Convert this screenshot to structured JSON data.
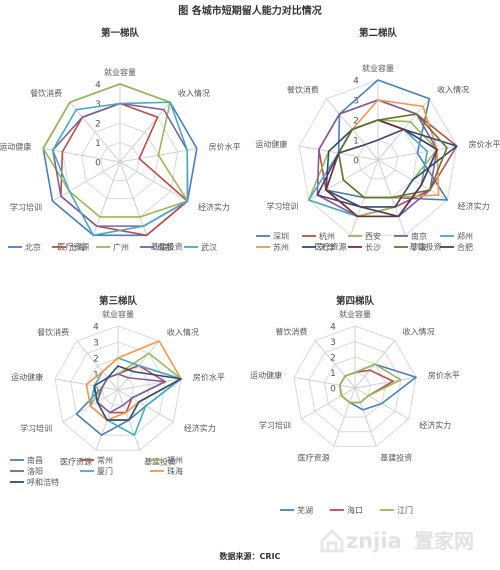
{
  "title": "图  各城市短期留人能力对比情况",
  "source": "数据来源：CRIC",
  "watermark": {
    "brand_latin": "znjia",
    "brand_cn": "置家网"
  },
  "colors": {
    "grid": "#d9d9d9",
    "axis_line": "#d0d0d0",
    "watermark": "#e0e0e0"
  },
  "chart_data": [
    {
      "type": "radar",
      "title": "第一梯队",
      "axes": [
        "就业容量",
        "收入情况",
        "房价水平",
        "经济实力",
        "基建投资",
        "医疗资源",
        "学习培训",
        "运动健康",
        "餐饮消费"
      ],
      "rlim": [
        0,
        4
      ],
      "ticks": [
        0,
        1,
        2,
        3,
        4
      ],
      "legend": "bottom",
      "series": [
        {
          "name": "北京",
          "color": "#4a7ebb",
          "values": [
            4,
            4,
            4,
            4,
            4,
            4,
            4,
            4,
            4
          ]
        },
        {
          "name": "上海",
          "color": "#be4b48",
          "values": [
            3,
            3,
            1,
            4,
            4,
            3.5,
            3.5,
            3,
            3
          ]
        },
        {
          "name": "广州",
          "color": "#98b954",
          "values": [
            4,
            4,
            2,
            4,
            3,
            3,
            3,
            4,
            4
          ]
        },
        {
          "name": "成都",
          "color": "#7d60a0",
          "values": [
            3,
            3.5,
            3.5,
            4,
            3.5,
            3.5,
            3.5,
            3.5,
            3
          ]
        },
        {
          "name": "武汉",
          "color": "#46aac5",
          "values": [
            3,
            4,
            3.5,
            4,
            3.5,
            4,
            3,
            3.5,
            3.5
          ]
        }
      ]
    },
    {
      "type": "radar",
      "title": "第二梯队",
      "axes": [
        "就业容量",
        "收入情况",
        "房价水平",
        "经济实力",
        "基建投资",
        "医疗资源",
        "学习培训",
        "运动健康",
        "餐饮消费"
      ],
      "rlim": [
        0,
        4
      ],
      "ticks": [
        0,
        1,
        2,
        3,
        4
      ],
      "legend": "bottom",
      "series": [
        {
          "name": "深圳",
          "color": "#4a7ebb",
          "values": [
            4,
            4,
            2,
            4,
            2,
            2,
            3,
            2,
            3
          ]
        },
        {
          "name": "杭州",
          "color": "#be4b48",
          "values": [
            3,
            3,
            4,
            3,
            2.5,
            3,
            3,
            3,
            3
          ]
        },
        {
          "name": "西安",
          "color": "#98b954",
          "values": [
            2,
            2.5,
            3,
            2,
            2.5,
            3,
            4,
            2.5,
            2
          ]
        },
        {
          "name": "南京",
          "color": "#7d60a0",
          "values": [
            3,
            3,
            3,
            3,
            3,
            3,
            3.5,
            3,
            3
          ]
        },
        {
          "name": "郑州",
          "color": "#46aac5",
          "values": [
            2,
            2,
            2.5,
            2.5,
            3,
            3,
            4,
            2,
            2
          ]
        },
        {
          "name": "苏州",
          "color": "#f79646",
          "values": [
            3,
            3.5,
            3,
            3.5,
            2,
            2,
            2,
            2,
            2
          ]
        },
        {
          "name": "天津",
          "color": "#2c4d75",
          "values": [
            2,
            2,
            4,
            2,
            2.5,
            2.5,
            3,
            2.5,
            2
          ]
        },
        {
          "name": "长沙",
          "color": "#772c2a",
          "values": [
            2,
            2,
            3,
            2.5,
            3,
            3,
            3,
            2,
            2
          ]
        },
        {
          "name": "宁波",
          "color": "#5f7530",
          "values": [
            2,
            3,
            3.5,
            3,
            2,
            2,
            2,
            2,
            2
          ]
        },
        {
          "name": "合肥",
          "color": "#4d3b62",
          "values": [
            1,
            2,
            3,
            2.5,
            3,
            2.5,
            3.5,
            2,
            1
          ]
        }
      ]
    },
    {
      "type": "radar",
      "title": "第三梯队",
      "axes": [
        "就业容量",
        "收入情况",
        "房价水平",
        "经济实力",
        "基建投资",
        "医疗资源",
        "学习培训",
        "运动健康",
        "餐饮消费"
      ],
      "rlim": [
        0,
        4
      ],
      "ticks": [
        0,
        1,
        2,
        3,
        4
      ],
      "legend": "bottom",
      "series": [
        {
          "name": "南昌",
          "color": "#4a7ebb",
          "values": [
            1,
            2,
            4,
            2,
            2,
            3,
            3,
            1,
            1
          ]
        },
        {
          "name": "常州",
          "color": "#be4b48",
          "values": [
            1,
            2,
            3,
            1,
            1.5,
            1.5,
            1.5,
            1,
            1
          ]
        },
        {
          "name": "福州",
          "color": "#98b954",
          "values": [
            1,
            3,
            4,
            1.5,
            2,
            2,
            2,
            1,
            1
          ]
        },
        {
          "name": "洛阳",
          "color": "#7d60a0",
          "values": [
            1,
            1,
            3,
            1,
            1,
            1.5,
            1.5,
            1,
            1
          ]
        },
        {
          "name": "厦门",
          "color": "#46aac5",
          "values": [
            2,
            2,
            4,
            2,
            3,
            2,
            2,
            1.5,
            1.5
          ]
        },
        {
          "name": "珠海",
          "color": "#f79646",
          "values": [
            2,
            4,
            4,
            1.5,
            1.5,
            2,
            2,
            2,
            1.5
          ]
        },
        {
          "name": "呼和浩特",
          "color": "#2c4d75",
          "values": [
            1.5,
            1.5,
            4,
            1.5,
            2,
            2,
            1.5,
            1.5,
            1
          ]
        }
      ]
    },
    {
      "type": "radar",
      "title": "第四梯队",
      "axes": [
        "就业容量",
        "收入情况",
        "房价水平",
        "经济实力",
        "基建投资",
        "医疗资源",
        "学习培训",
        "运动健康",
        "餐饮消费"
      ],
      "rlim": [
        0,
        4
      ],
      "ticks": [
        0,
        1,
        2,
        3,
        4
      ],
      "legend": "bottom",
      "series": [
        {
          "name": "芜湖",
          "color": "#4a7ebb",
          "values": [
            1,
            2,
            4,
            2,
            1.5,
            1,
            1,
            1,
            1
          ]
        },
        {
          "name": "海口",
          "color": "#be4b48",
          "values": [
            1,
            1.5,
            2.5,
            1,
            1,
            1,
            1,
            1,
            1
          ]
        },
        {
          "name": "江门",
          "color": "#98b954",
          "values": [
            1,
            2,
            3,
            1,
            1,
            1,
            1,
            1,
            1
          ]
        }
      ]
    }
  ]
}
